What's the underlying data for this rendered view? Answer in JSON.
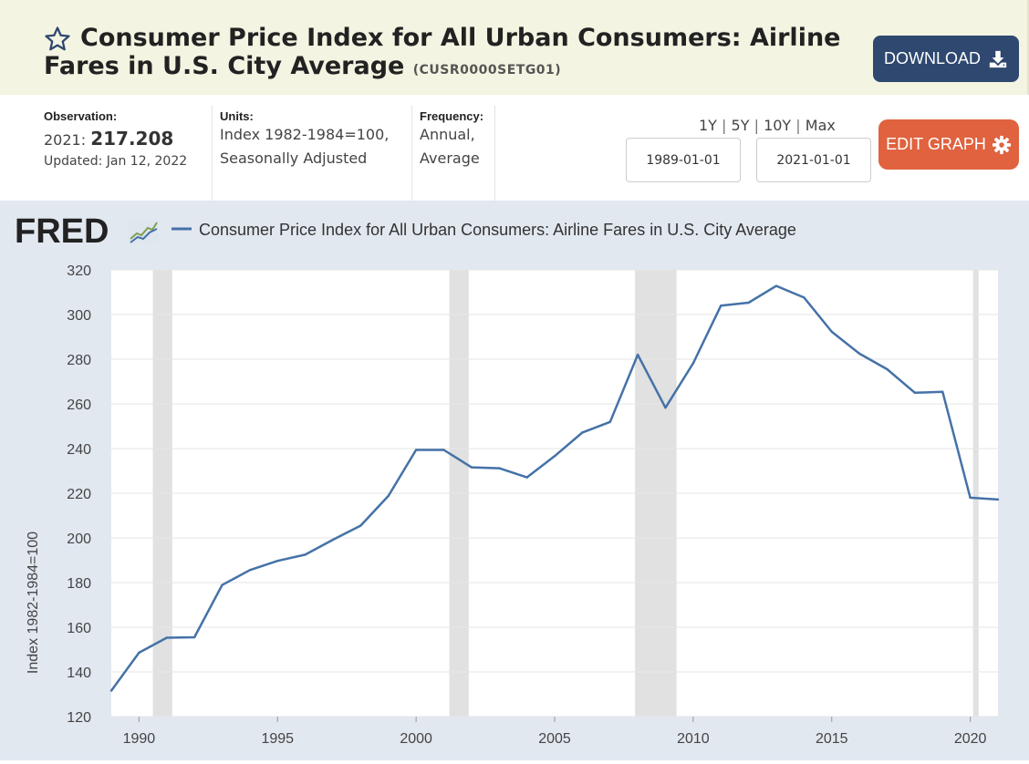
{
  "header": {
    "title": "Consumer Price Index for All Urban Consumers: Airline Fares in U.S. City Average",
    "series_id": "(CUSR0000SETG01)",
    "download_label": "DOWNLOAD"
  },
  "meta": {
    "observation_label": "Observation:",
    "observation_period": "2021:",
    "observation_value": "217.208",
    "updated": "Updated: Jan 12, 2022",
    "units_label": "Units:",
    "units_line1": "Index 1982-1984=100,",
    "units_line2": "Seasonally Adjusted",
    "frequency_label": "Frequency:",
    "frequency_line1": "Annual,",
    "frequency_line2": "Average"
  },
  "controls": {
    "range_1y": "1Y",
    "range_5y": "5Y",
    "range_10y": "10Y",
    "range_max": "Max",
    "separator": "|",
    "start_date": "1989-01-01",
    "end_date": "2021-01-01",
    "edit_label": "EDIT GRAPH"
  },
  "brand": {
    "logo_text": "FRED"
  },
  "colors": {
    "line": "#4572a7",
    "recession": "#e1e1e1",
    "download_button": "#2e4870",
    "edit_button": "#e0623f"
  },
  "chart_data": {
    "type": "line",
    "title": "",
    "xlabel": "",
    "ylabel": "Index 1982-1984=100",
    "ylim": [
      120,
      320
    ],
    "xlim": [
      1989,
      2021
    ],
    "yticks": [
      120,
      140,
      160,
      180,
      200,
      220,
      240,
      260,
      280,
      300,
      320
    ],
    "xticks": [
      1990,
      1995,
      2000,
      2005,
      2010,
      2015,
      2020
    ],
    "grid": true,
    "legend": "top-left",
    "series": [
      {
        "name": "Consumer Price Index for All Urban Consumers: Airline Fares in U.S. City Average",
        "x": [
          1989,
          1990,
          1991,
          1992,
          1993,
          1994,
          1995,
          1996,
          1997,
          1998,
          1999,
          2000,
          2001,
          2002,
          2003,
          2004,
          2005,
          2006,
          2007,
          2008,
          2009,
          2010,
          2011,
          2012,
          2013,
          2014,
          2015,
          2016,
          2017,
          2018,
          2019,
          2020,
          2021
        ],
        "values": [
          131.6,
          148.6,
          155.3,
          155.5,
          178.9,
          185.6,
          189.7,
          192.5,
          199.2,
          205.5,
          218.8,
          239.4,
          239.4,
          231.6,
          231.2,
          227.1,
          236.6,
          247.2,
          251.9,
          282.0,
          258.3,
          278.2,
          304.0,
          305.3,
          312.8,
          307.6,
          292.3,
          282.5,
          275.5,
          265.0,
          265.4,
          218.0,
          217.2
        ]
      }
    ],
    "recessions": [
      [
        1990.5,
        1991.2
      ],
      [
        2001.2,
        2001.9
      ],
      [
        2007.9,
        2009.4
      ],
      [
        2020.1,
        2020.3
      ]
    ]
  }
}
